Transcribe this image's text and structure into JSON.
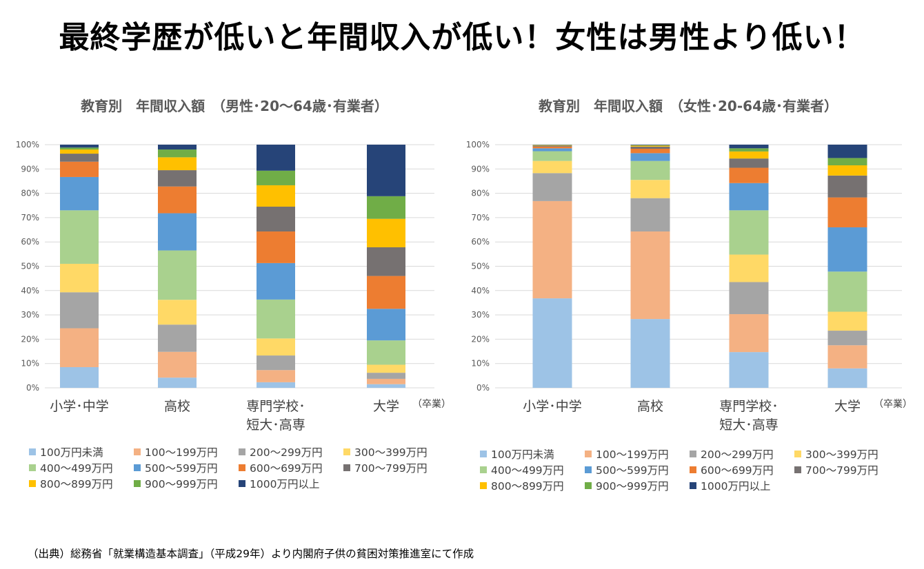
{
  "title": "最終学歴が低いと年間収入が低い！女性は男性より低い！",
  "source_note": "（出典）総務省「就業構造基本調査」（平成29年）より内閣府子供の貧困対策推進室にて作成",
  "chart_data": [
    {
      "type": "bar",
      "stacked": true,
      "title": "教育別　年間収入額　（男性･20～64歳･有業者）",
      "xlabel": "",
      "ylabel": "",
      "ylim": [
        0,
        100
      ],
      "yticks": [
        "0%",
        "10%",
        "20%",
        "30%",
        "40%",
        "50%",
        "60%",
        "70%",
        "80%",
        "90%",
        "100%"
      ],
      "grid": true,
      "legend_position": "bottom",
      "x_note": "（卒業）",
      "categories": [
        [
          "小学･中学"
        ],
        [
          "高校"
        ],
        [
          "専門学校･",
          "短大･高専"
        ],
        [
          "大学"
        ]
      ],
      "series": [
        {
          "name": "100万円未満",
          "color": "#9DC3E6",
          "values": [
            8.5,
            4.2,
            2.3,
            1.5
          ]
        },
        {
          "name": "100～199万円",
          "color": "#F4B183",
          "values": [
            16.0,
            10.6,
            5.0,
            2.2
          ]
        },
        {
          "name": "200～299万円",
          "color": "#A5A5A5",
          "values": [
            14.8,
            11.2,
            6.0,
            2.5
          ]
        },
        {
          "name": "300～399万円",
          "color": "#FFD966",
          "values": [
            11.7,
            10.2,
            7.0,
            3.3
          ]
        },
        {
          "name": "400～499万円",
          "color": "#A9D18E",
          "values": [
            22.0,
            20.3,
            16.0,
            10.0
          ]
        },
        {
          "name": "500～599万円",
          "color": "#5B9BD5",
          "values": [
            13.7,
            15.3,
            15.0,
            13.0
          ]
        },
        {
          "name": "600～699万円",
          "color": "#ED7D31",
          "values": [
            6.3,
            11.0,
            13.0,
            13.5
          ]
        },
        {
          "name": "700～799万円",
          "color": "#767171",
          "values": [
            3.3,
            6.7,
            10.2,
            11.8
          ]
        },
        {
          "name": "800～899万円",
          "color": "#FFC000",
          "values": [
            1.7,
            5.3,
            8.8,
            11.7
          ]
        },
        {
          "name": "900～999万円",
          "color": "#70AD47",
          "values": [
            0.8,
            3.2,
            6.0,
            9.3
          ]
        },
        {
          "name": "1000万円以上",
          "color": "#264478",
          "values": [
            1.2,
            2.0,
            10.7,
            21.2
          ]
        }
      ]
    },
    {
      "type": "bar",
      "stacked": true,
      "title": "教育別　年間収入額　（女性･20-64歳･有業者）",
      "xlabel": "",
      "ylabel": "",
      "ylim": [
        0,
        100
      ],
      "yticks": [
        "0%",
        "10%",
        "20%",
        "30%",
        "40%",
        "50%",
        "60%",
        "70%",
        "80%",
        "90%",
        "100%"
      ],
      "grid": true,
      "legend_position": "bottom",
      "x_note": "（卒業）",
      "categories": [
        [
          "小学･中学"
        ],
        [
          "高校"
        ],
        [
          "専門学校･",
          "短大･高専"
        ],
        [
          "大学"
        ]
      ],
      "series": [
        {
          "name": "100万円未満",
          "color": "#9DC3E6",
          "values": [
            36.8,
            28.3,
            14.7,
            8.0
          ]
        },
        {
          "name": "100～199万円",
          "color": "#F4B183",
          "values": [
            40.0,
            36.0,
            15.6,
            9.5
          ]
        },
        {
          "name": "200～299万円",
          "color": "#A5A5A5",
          "values": [
            11.5,
            13.7,
            13.2,
            6.0
          ]
        },
        {
          "name": "300～399万円",
          "color": "#FFD966",
          "values": [
            5.0,
            7.5,
            11.3,
            7.8
          ]
        },
        {
          "name": "400～499万円",
          "color": "#A9D18E",
          "values": [
            4.0,
            7.8,
            18.2,
            16.5
          ]
        },
        {
          "name": "500～599万円",
          "color": "#5B9BD5",
          "values": [
            1.2,
            3.2,
            11.2,
            18.2
          ]
        },
        {
          "name": "600～699万円",
          "color": "#ED7D31",
          "values": [
            0.7,
            1.8,
            6.3,
            12.3
          ]
        },
        {
          "name": "700～799万円",
          "color": "#767171",
          "values": [
            0.4,
            0.9,
            3.8,
            9.0
          ]
        },
        {
          "name": "800～899万円",
          "color": "#FFC000",
          "values": [
            0.2,
            0.4,
            2.9,
            4.2
          ]
        },
        {
          "name": "900～999万円",
          "color": "#70AD47",
          "values": [
            0.1,
            0.2,
            1.3,
            3.0
          ]
        },
        {
          "name": "1000万円以上",
          "color": "#264478",
          "values": [
            0.1,
            0.2,
            1.5,
            5.5
          ]
        }
      ]
    }
  ]
}
